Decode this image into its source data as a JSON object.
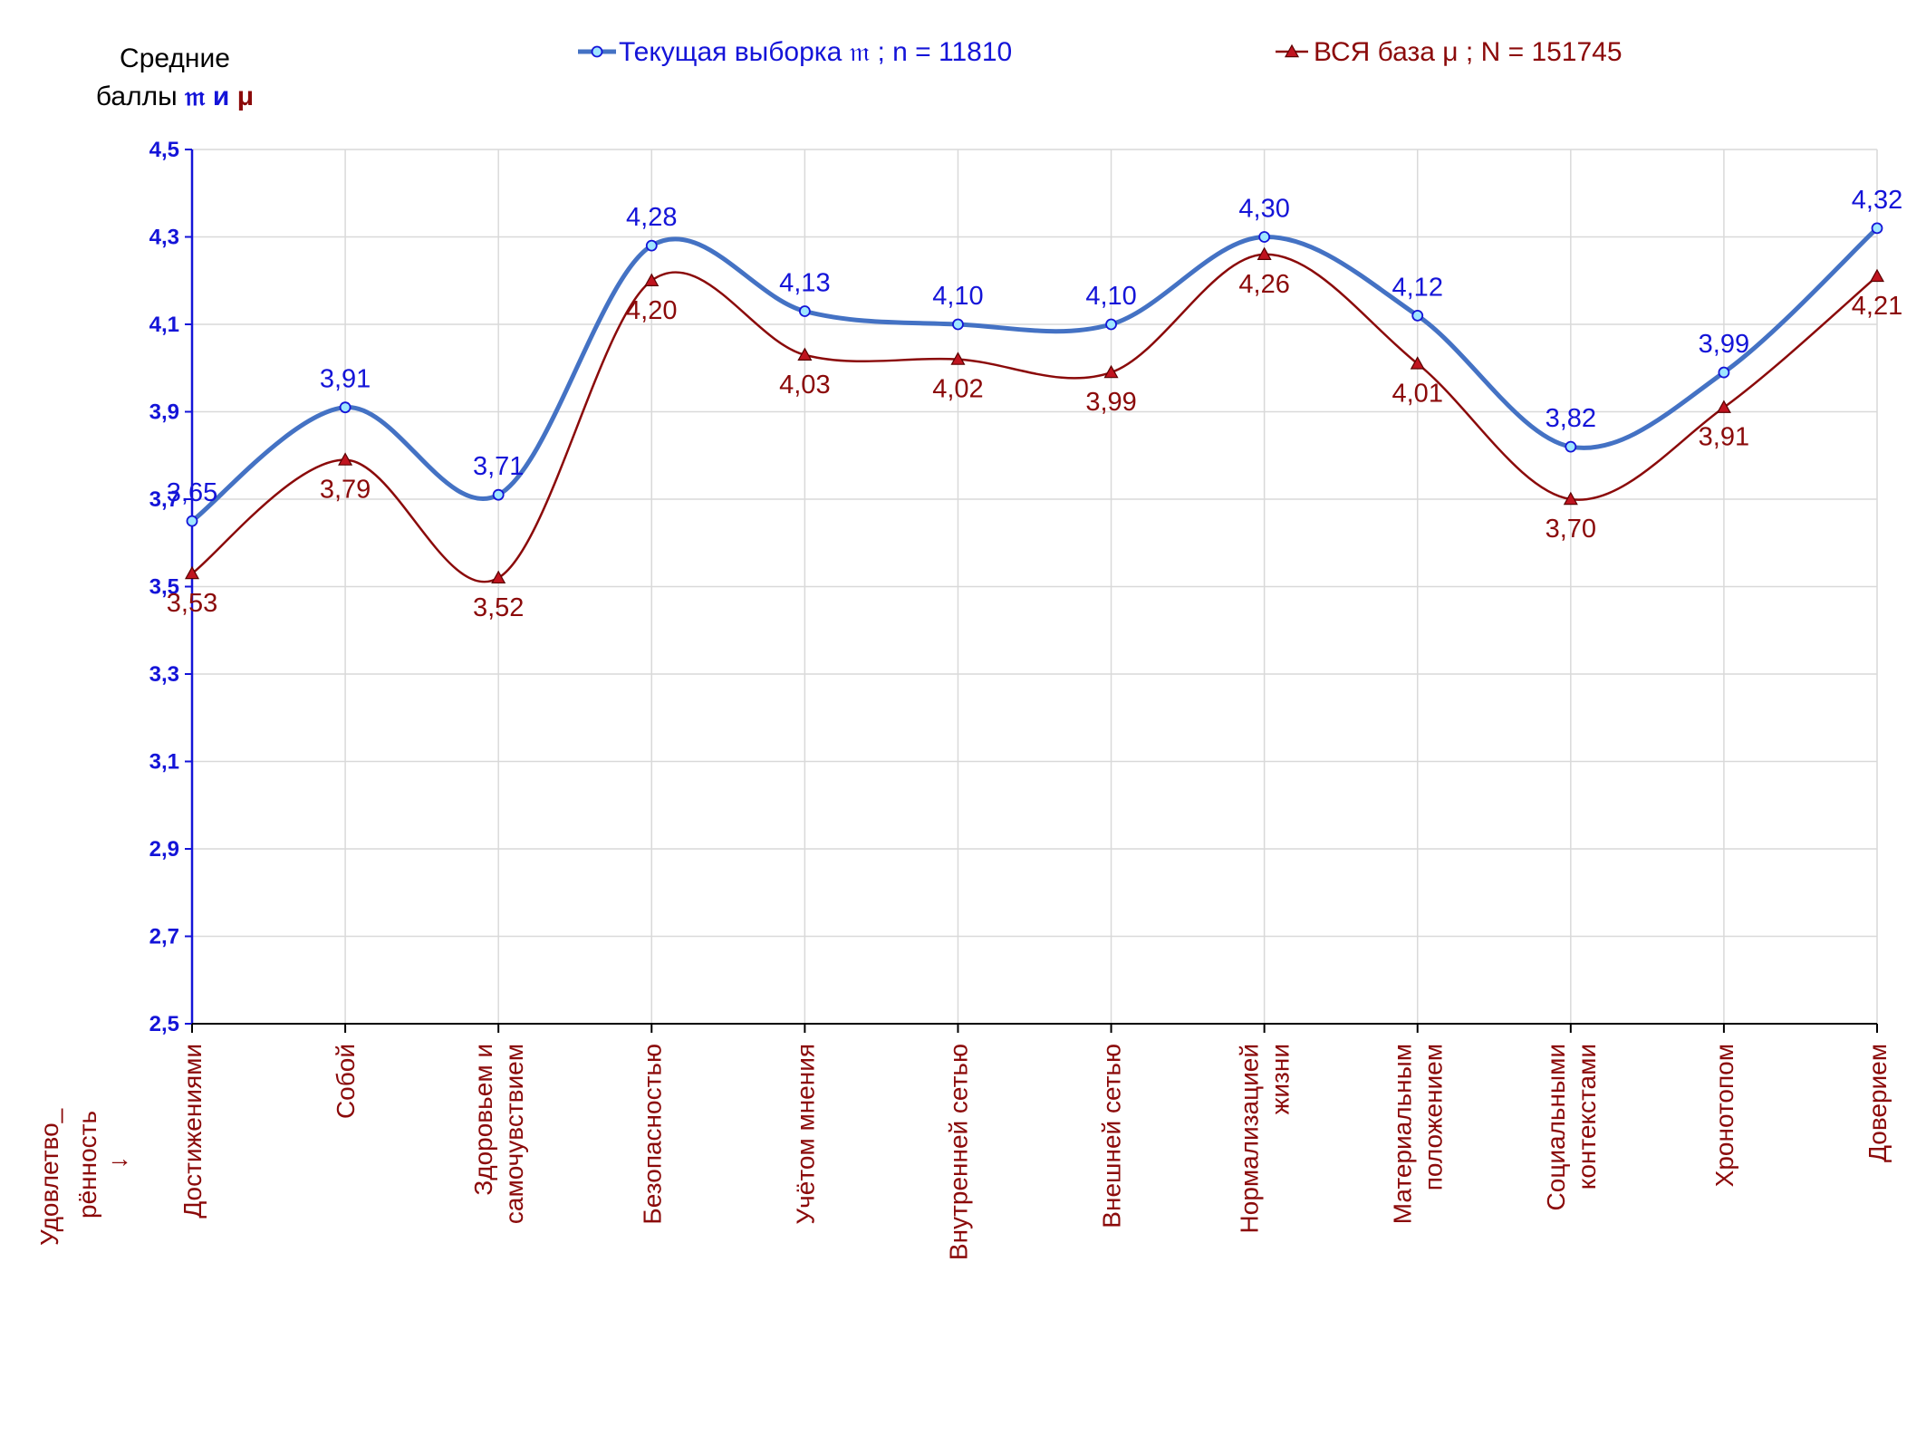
{
  "chart_data": {
    "type": "line",
    "ylabel_line1": "Средние",
    "ylabel_line2_text": "баллы",
    "ylabel_sym1": "𝔪",
    "ylabel_and": "и",
    "ylabel_sym2": "μ",
    "xlabel_line1": "Удовлетво_",
    "xlabel_line2": "рённость",
    "xlabel_arrow": "→",
    "ylim": [
      2.5,
      4.5
    ],
    "yticks": [
      "2,5",
      "2,7",
      "2,9",
      "3,1",
      "3,3",
      "3,5",
      "3,7",
      "3,9",
      "4,1",
      "4,3",
      "4,5"
    ],
    "grid": true,
    "legend_position": "top",
    "categories": [
      [
        "Достижениями"
      ],
      [
        "Собой"
      ],
      [
        "Здоровьем и",
        "самочувствием"
      ],
      [
        "Безопасностью"
      ],
      [
        "Учётом мнения"
      ],
      [
        "Внутренней сетью"
      ],
      [
        "Внешней сетью"
      ],
      [
        "Нормализацией",
        "жизни"
      ],
      [
        "Материальным",
        "положением"
      ],
      [
        "Социальными",
        "контекстами"
      ],
      [
        "Хронотопом"
      ],
      [
        "Доверием"
      ]
    ],
    "series": [
      {
        "name": "Текущая выборка 𝔪 ; n = 11810",
        "color": "#4472c4",
        "label_color": "#1414d8",
        "marker": "circle",
        "values": [
          3.65,
          3.91,
          3.71,
          4.28,
          4.13,
          4.1,
          4.1,
          4.3,
          4.12,
          3.82,
          3.99,
          4.32
        ],
        "labels": [
          "3,65",
          "3,91",
          "3,71",
          "4,28",
          "4,13",
          "4,10",
          "4,10",
          "4,30",
          "4,12",
          "3,82",
          "3,99",
          "4,32"
        ]
      },
      {
        "name": "ВСЯ база μ ; N = 151745",
        "color": "#8b0a0a",
        "label_color": "#8b0a0a",
        "marker": "triangle",
        "values": [
          3.53,
          3.79,
          3.52,
          4.2,
          4.03,
          4.02,
          3.99,
          4.26,
          4.01,
          3.7,
          3.91,
          4.21
        ],
        "labels": [
          "3,53",
          "3,79",
          "3,52",
          "4,20",
          "4,03",
          "4,02",
          "3,99",
          "4,26",
          "4,01",
          "3,70",
          "3,91",
          "4,21"
        ]
      }
    ]
  }
}
